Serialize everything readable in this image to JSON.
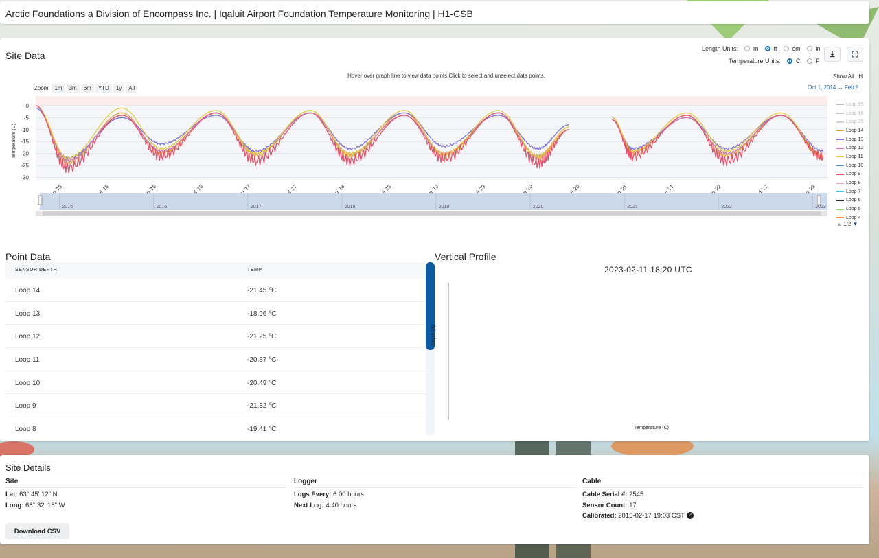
{
  "header": {
    "title": "Arctic Foundations a Division of Encompass Inc. | Iqaluit Airport Foundation Temperature Monitoring | H1-CSB"
  },
  "site_data": {
    "title": "Site Data",
    "length_units": {
      "label": "Length Units:",
      "options": [
        "m",
        "ft",
        "cm",
        "in"
      ],
      "selected": "ft"
    },
    "temperature_units": {
      "label": "Temperature Units:",
      "options": [
        "C",
        "F"
      ],
      "selected": "C"
    },
    "download_icon": "download-icon",
    "fullscreen_icon": "expand-icon",
    "hint": "Hover over graph line to view data points.Click to select and unselect data points.",
    "zoom": {
      "label": "Zoom",
      "buttons": [
        "1m",
        "3m",
        "6m",
        "YTD",
        "1y",
        "All"
      ]
    },
    "range": {
      "from": "Oct 1, 2014",
      "arrow": "→",
      "to": "Feb 8"
    },
    "show_all": "Show All",
    "show_all_extra": "H",
    "legend_pager": "1/2"
  },
  "chart_data": {
    "type": "line",
    "ylabel": "Temperature (C)",
    "yticks": [
      0,
      -5,
      -10,
      -15,
      -20,
      -25,
      -30
    ],
    "ylim": [
      -31,
      4
    ],
    "xticks": [
      "Jan '15",
      "Jul '15",
      "Jan '16",
      "Jul '16",
      "Jan '17",
      "Jul '17",
      "Jan '18",
      "Jul '18",
      "Jan '19",
      "Jul '19",
      "Jan '20",
      "Jul '20",
      "Jan '21",
      "Jul '21",
      "Jan '22",
      "Jul '22",
      "Jan '23"
    ],
    "navigator_years": [
      "2015",
      "2016",
      "2017",
      "2018",
      "2019",
      "2020",
      "2021",
      "2022",
      "2023"
    ],
    "x_range": [
      "2014-10-01",
      "2023-02-28"
    ],
    "gap": [
      "2020-06-01",
      "2020-11-15"
    ],
    "legend_position": "right",
    "series": [
      {
        "name": "Loop 15",
        "color": "#bdbdbd",
        "visible": false,
        "x": [
          "2014-10-01",
          "2015-02-01",
          "2015-09-01",
          "2016-02-01",
          "2016-09-01",
          "2017-02-01",
          "2017-09-01",
          "2018-02-01",
          "2018-09-01",
          "2019-02-01",
          "2019-09-01",
          "2020-02-01",
          "2020-05-31"
        ],
        "y": [
          0,
          -22,
          -3,
          -17,
          -3,
          -19,
          -2,
          -18,
          -3,
          -19,
          -3,
          -20,
          -7
        ]
      },
      {
        "name": "Loop 16",
        "color": "#c8c8c8",
        "visible": false,
        "x": [],
        "y": []
      },
      {
        "name": "Loop 25",
        "color": "#d2d2d2",
        "visible": false,
        "x": [],
        "y": []
      },
      {
        "name": "Loop 14",
        "color": "#e8a33a",
        "visible": true,
        "x": [
          "2014-10-01",
          "2015-02-01",
          "2015-09-01",
          "2016-02-01",
          "2016-09-01",
          "2017-02-01",
          "2017-09-01",
          "2018-02-01",
          "2018-09-01",
          "2019-02-01",
          "2019-09-01",
          "2020-02-01",
          "2020-05-31",
          "2020-11-15",
          "2021-02-01",
          "2021-09-01",
          "2022-02-01",
          "2022-09-01",
          "2023-02-11"
        ],
        "y": [
          0,
          -24,
          -3,
          -20,
          -3,
          -21,
          -2,
          -21,
          -3,
          -21,
          -3,
          -22,
          -10,
          -5,
          -20,
          -4,
          -21,
          -4,
          -21.45
        ]
      },
      {
        "name": "Loop 13",
        "color": "#7b6fd6",
        "visible": true,
        "x": [
          "2014-10-01",
          "2015-02-01",
          "2015-09-01",
          "2016-02-01",
          "2016-09-01",
          "2017-02-01",
          "2017-09-01",
          "2018-02-01",
          "2018-09-01",
          "2019-02-01",
          "2019-09-01",
          "2020-02-01",
          "2020-05-31",
          "2020-11-15",
          "2021-02-01",
          "2021-09-01",
          "2022-02-01",
          "2022-09-01",
          "2023-02-11"
        ],
        "y": [
          -1,
          -22,
          -5,
          -16,
          -4,
          -19,
          -3,
          -18,
          -3,
          -17,
          -4,
          -18,
          -8,
          -6,
          -18,
          -5,
          -18,
          -4,
          -18.96
        ]
      },
      {
        "name": "Loop 12",
        "color": "#c87ab0",
        "visible": true,
        "x": [
          "2014-10-01",
          "2015-02-01",
          "2015-09-01",
          "2016-02-01",
          "2016-09-01",
          "2017-02-01",
          "2017-09-01",
          "2018-02-01",
          "2018-09-01",
          "2019-02-01",
          "2019-09-01",
          "2020-02-01",
          "2020-05-31",
          "2020-11-15",
          "2021-02-01",
          "2021-09-01",
          "2022-02-01",
          "2022-09-01",
          "2023-02-11"
        ],
        "y": [
          0,
          -23,
          -4,
          -19,
          -3,
          -20,
          -3,
          -20,
          -4,
          -20,
          -3,
          -21,
          -9,
          -6,
          -19,
          -5,
          -20,
          -4,
          -21.25
        ]
      },
      {
        "name": "Loop 11",
        "color": "#e3cc3c",
        "visible": true,
        "x": [
          "2014-10-01",
          "2015-02-01",
          "2015-09-01",
          "2016-02-01",
          "2016-09-01",
          "2017-02-01",
          "2017-09-01",
          "2018-02-01",
          "2018-09-01",
          "2019-02-01",
          "2019-09-01",
          "2020-02-01",
          "2020-05-31",
          "2020-11-15",
          "2021-02-01",
          "2021-09-01",
          "2022-02-01",
          "2022-09-01",
          "2023-02-11"
        ],
        "y": [
          0,
          -22,
          -1,
          -18,
          -2,
          -20,
          -2,
          -20,
          -2,
          -20,
          -2,
          -21,
          -9,
          -5,
          -19,
          -3,
          -19,
          -3,
          -20.87
        ]
      },
      {
        "name": "Loop 10",
        "color": "#4a8fd6",
        "visible": true,
        "x": [],
        "y": []
      },
      {
        "name": "Loop 9",
        "color": "#e8506a",
        "visible": true,
        "x": [
          "2014-10-01",
          "2015-02-01",
          "2015-09-01",
          "2016-02-01",
          "2016-09-01",
          "2017-02-01",
          "2017-09-01",
          "2018-02-01",
          "2018-09-01",
          "2019-02-01",
          "2019-09-01",
          "2020-02-01",
          "2020-05-31",
          "2020-11-15",
          "2021-02-01",
          "2021-09-01",
          "2022-02-01",
          "2022-09-01",
          "2023-02-11"
        ],
        "y": [
          0,
          -26,
          -4,
          -21,
          -3,
          -23,
          -3,
          -23,
          -4,
          -22,
          -3,
          -24,
          -10,
          -6,
          -21,
          -4,
          -23,
          -4,
          -21.32
        ]
      },
      {
        "name": "Loop 8",
        "color": "#e0a8c8",
        "visible": true,
        "x": [],
        "y": []
      },
      {
        "name": "Loop 7",
        "color": "#52c0d8",
        "visible": true,
        "x": [],
        "y": []
      },
      {
        "name": "Loop 6",
        "color": "#2c2c2c",
        "visible": true,
        "x": [],
        "y": []
      },
      {
        "name": "Loop 5",
        "color": "#8fd65a",
        "visible": true,
        "x": [],
        "y": []
      },
      {
        "name": "Loop 4",
        "color": "#f08a4b",
        "visible": true,
        "x": [],
        "y": []
      }
    ]
  },
  "point_data": {
    "title": "Point Data",
    "columns": [
      "SENSOR DEPTH",
      "TEMP"
    ],
    "rows": [
      {
        "depth": "Loop 14",
        "temp": "-21.45 °C"
      },
      {
        "depth": "Loop 13",
        "temp": "-18.96 °C"
      },
      {
        "depth": "Loop 12",
        "temp": "-21.25 °C"
      },
      {
        "depth": "Loop 11",
        "temp": "-20.87 °C"
      },
      {
        "depth": "Loop 10",
        "temp": "-20.49 °C"
      },
      {
        "depth": "Loop 9",
        "temp": "-21.32 °C"
      },
      {
        "depth": "Loop 8",
        "temp": "-19.41 °C"
      }
    ]
  },
  "vertical_profile": {
    "title": "Vertical Profile",
    "timestamp": "2023-02-11 18:20 UTC",
    "ylabel": "Depth (ft)",
    "xlabel": "Temperature (C)"
  },
  "site_details": {
    "title": "Site Details",
    "site": {
      "heading": "Site",
      "lat_label": "Lat:",
      "lat": "63° 45' 12\" N",
      "long_label": "Long:",
      "long": "68° 32' 18\" W"
    },
    "logger": {
      "heading": "Logger",
      "every_label": "Logs Every:",
      "every": "6.00 hours",
      "next_label": "Next Log:",
      "next": "4.40 hours"
    },
    "cable": {
      "heading": "Cable",
      "serial_label": "Cable Serial #:",
      "serial": "2545",
      "count_label": "Sensor Count:",
      "count": "17",
      "calibrated_label": "Calibrated:",
      "calibrated": "2015-02-17 19:03 CST",
      "help_icon": "question-icon"
    },
    "download_button": "Download CSV"
  }
}
